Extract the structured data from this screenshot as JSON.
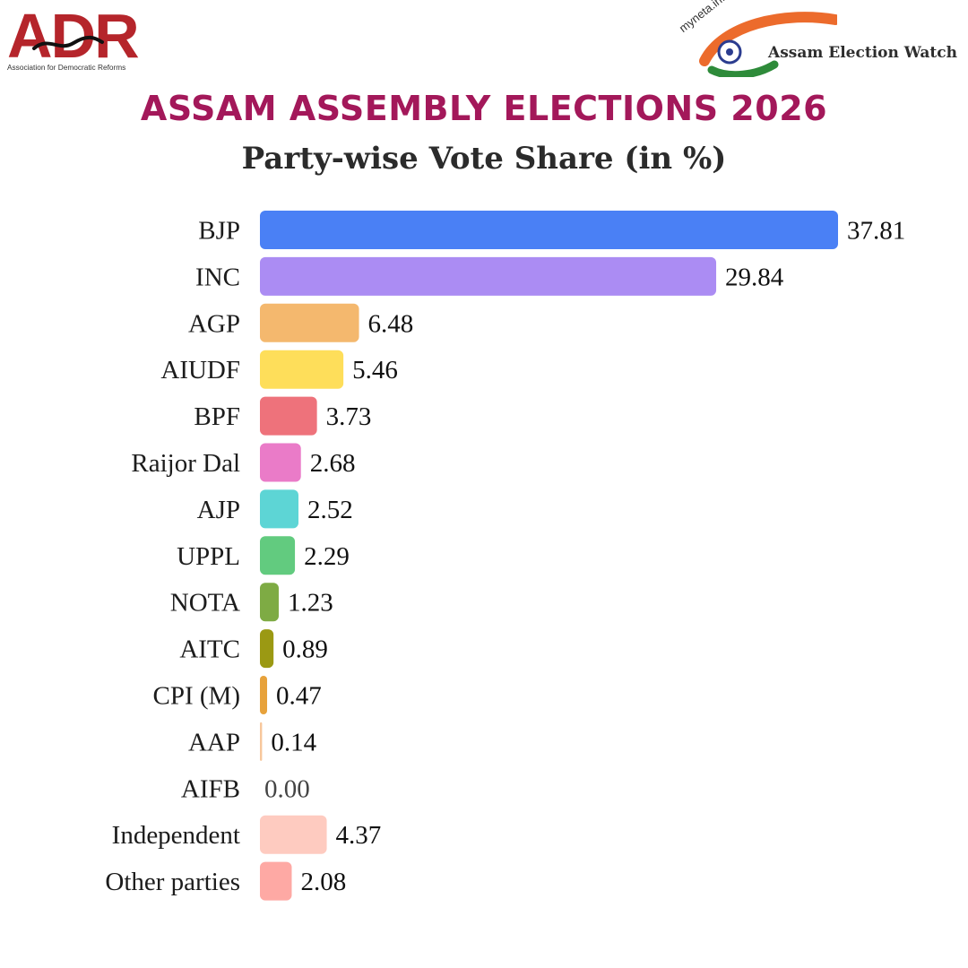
{
  "header": {
    "adr_logo_text": "ADR",
    "adr_tagline": "Association for Democratic Reforms",
    "myneta_brand": "myneta.info",
    "myneta_text": "Assam Election Watch"
  },
  "chart_data": {
    "type": "bar",
    "orientation": "horizontal",
    "title": "ASSAM ASSEMBLY ELECTIONS 2026",
    "subtitle": "Party-wise Vote Share (in %)",
    "xlabel": "",
    "ylabel": "",
    "grid": false,
    "categories": [
      "BJP",
      "INC",
      "AGP",
      "AIUDF",
      "BPF",
      "Raijor Dal",
      "AJP",
      "UPPL",
      "NOTA",
      "AITC",
      "CPI (M)",
      "AAP",
      "AIFB",
      "Independent",
      "Other parties"
    ],
    "values": [
      37.81,
      29.84,
      6.48,
      5.46,
      3.73,
      2.68,
      2.52,
      2.29,
      1.23,
      0.89,
      0.47,
      0.14,
      0.0,
      4.37,
      2.08
    ],
    "value_labels": [
      "37.81",
      "29.84",
      "6.48",
      "5.46",
      "3.73",
      "2.68",
      "2.52",
      "2.29",
      "1.23",
      "0.89",
      "0.47",
      "0.14",
      "0.00",
      "4.37",
      "2.08"
    ],
    "colors": [
      "#4a80f5",
      "#ab8cf3",
      "#f4b86e",
      "#fede5a",
      "#ee727b",
      "#ea7bc8",
      "#5dd5d5",
      "#62cb7f",
      "#7eab44",
      "#9b9913",
      "#e7a23b",
      "#f7c79b",
      "#cccccc",
      "#fecbc0",
      "#fea9a4"
    ]
  }
}
